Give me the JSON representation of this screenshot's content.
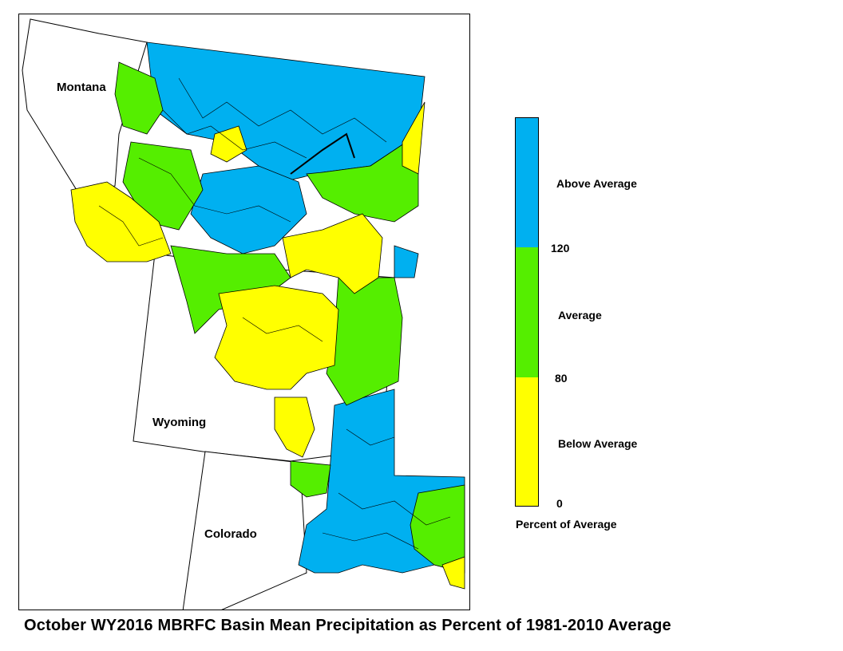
{
  "map": {
    "states": [
      {
        "id": "montana",
        "name": "Montana"
      },
      {
        "id": "wyoming",
        "name": "Wyoming"
      },
      {
        "id": "colorado",
        "name": "Colorado"
      }
    ],
    "colors": {
      "above": "#00b0f0",
      "average": "#55ee00",
      "below": "#ffff00",
      "outline": "#000000",
      "background": "#ffffff"
    }
  },
  "legend": {
    "categories": [
      {
        "label": "Above Average",
        "color": "#00b0f0",
        "range": [
          120,
          null
        ]
      },
      {
        "label": "Average",
        "color": "#55ee00",
        "range": [
          80,
          120
        ]
      },
      {
        "label": "Below Average",
        "color": "#ffff00",
        "range": [
          0,
          80
        ]
      }
    ],
    "ticks": [
      "120",
      "80",
      "0"
    ],
    "title": "Percent of Average"
  },
  "caption": "October WY2016 MBRFC Basin Mean Precipitation as Percent of 1981-2010 Average"
}
